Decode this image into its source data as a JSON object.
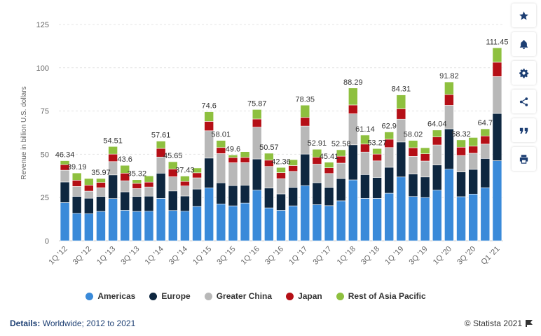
{
  "chart_data": {
    "type": "bar",
    "stacked": true,
    "ylabel": "Revenue in billion U.S. dollars",
    "ylim": [
      0,
      125
    ],
    "yticks": [
      0,
      25,
      50,
      75,
      100,
      125
    ],
    "grid": true,
    "categories": [
      "1Q '12",
      "2Q '12",
      "3Q '12",
      "4Q '12",
      "1Q '13",
      "2Q '13",
      "3Q '13",
      "4Q '13",
      "1Q '14",
      "2Q '14",
      "3Q '14",
      "4Q '14",
      "1Q '15",
      "2Q '15",
      "3Q '15",
      "4Q '15",
      "1Q '16",
      "2Q '16",
      "3Q '16",
      "4Q '16",
      "1Q '17",
      "2Q '17",
      "3Q '17",
      "4Q '17",
      "1Q '18",
      "2Q '18",
      "3Q '18",
      "4Q '18",
      "1Q '19",
      "2Q '19",
      "3Q '19",
      "4Q '19",
      "1Q '20",
      "2Q '20",
      "3Q '20",
      "4Q '20",
      "Q1 '21"
    ],
    "xtick_labels": [
      "1Q '12",
      "",
      "3Q '12",
      "",
      "1Q '13",
      "",
      "3Q '13",
      "",
      "1Q '14",
      "",
      "3Q '14",
      "",
      "1Q '15",
      "",
      "3Q '15",
      "",
      "1Q '16",
      "",
      "3Q '16",
      "",
      "1Q '17",
      "",
      "3Q '17",
      "",
      "1Q '18",
      "",
      "3Q '18",
      "",
      "1Q '19",
      "",
      "3Q '19",
      "",
      "1Q '20",
      "",
      "3Q '20",
      "",
      "Q1 '21"
    ],
    "totals": [
      46.34,
      39.19,
      35.97,
      36.0,
      54.51,
      43.6,
      35.32,
      37.5,
      57.61,
      45.65,
      37.43,
      42.1,
      74.6,
      58.01,
      49.6,
      51.5,
      75.87,
      50.57,
      42.36,
      46.9,
      78.35,
      52.91,
      45.41,
      52.58,
      88.29,
      61.14,
      53.27,
      62.9,
      84.31,
      58.02,
      53.8,
      64.04,
      91.82,
      58.32,
      59.7,
      64.7,
      111.45
    ],
    "total_labels": [
      "46.34",
      "39.19",
      "",
      "35.97",
      "54.51",
      "43.6",
      "35.32",
      "",
      "57.61",
      "45.65",
      "37.43",
      "",
      "74.6",
      "58.01",
      "49.6",
      "",
      "75.87",
      "50.57",
      "42.36",
      "",
      "78.35",
      "52.91",
      "45.41",
      "52.58",
      "88.29",
      "61.14",
      "53.27",
      "62.9",
      "84.31",
      "58.02",
      "",
      "64.04",
      "91.82",
      "58.32",
      "",
      "64.7",
      "111.45"
    ],
    "series": [
      {
        "name": "Americas",
        "color": "#3a8ad9",
        "values": [
          22.1,
          15.9,
          15.7,
          17.0,
          24.4,
          17.6,
          17.0,
          17.1,
          24.5,
          17.5,
          17.1,
          19.9,
          30.6,
          21.3,
          20.2,
          21.8,
          29.3,
          19.0,
          17.6,
          20.2,
          31.9,
          20.9,
          20.3,
          23.1,
          35.2,
          24.5,
          24.5,
          27.5,
          36.9,
          25.6,
          25.0,
          29.3,
          41.4,
          25.5,
          27.0,
          30.7,
          46.3
        ]
      },
      {
        "name": "Europe",
        "color": "#0e2740",
        "values": [
          11.9,
          9.8,
          8.9,
          8.6,
          13.7,
          10.7,
          8.6,
          8.7,
          14.6,
          11.3,
          8.8,
          10.0,
          17.2,
          12.2,
          11.7,
          10.3,
          18.0,
          11.5,
          9.5,
          10.7,
          18.2,
          12.7,
          10.6,
          12.9,
          20.3,
          13.8,
          12.1,
          15.0,
          20.2,
          13.0,
          11.9,
          14.5,
          23.3,
          14.3,
          14.3,
          16.9,
          27.3
        ]
      },
      {
        "name": "Greater China",
        "color": "#b8b8b8",
        "values": [
          6.8,
          5.7,
          4.1,
          5.1,
          7.7,
          6.4,
          4.6,
          5.3,
          9.3,
          8.2,
          5.8,
          6.5,
          15.8,
          16.9,
          13.2,
          13.1,
          18.4,
          12.5,
          8.8,
          9.2,
          16.2,
          10.7,
          8.0,
          8.9,
          17.9,
          13.0,
          9.6,
          11.4,
          13.2,
          10.2,
          9.2,
          11.6,
          13.6,
          9.5,
          9.3,
          8.3,
          21.3
        ]
      },
      {
        "name": "Japan",
        "color": "#b50f16",
        "values": [
          3.2,
          3.6,
          3.5,
          3.0,
          4.3,
          4.4,
          3.0,
          2.8,
          5.0,
          4.5,
          2.6,
          2.9,
          5.4,
          3.5,
          3.0,
          3.0,
          4.7,
          3.6,
          3.5,
          3.4,
          5.0,
          4.0,
          3.3,
          4.0,
          5.1,
          4.6,
          3.9,
          4.8,
          6.0,
          5.0,
          4.2,
          4.6,
          6.2,
          4.8,
          4.1,
          4.7,
          8.3
        ]
      },
      {
        "name": "Rest of Asia Pacific",
        "color": "#8ec03f",
        "values": [
          2.3,
          4.2,
          3.8,
          2.3,
          4.4,
          4.5,
          2.1,
          3.6,
          4.2,
          4.2,
          3.1,
          2.8,
          5.6,
          4.1,
          1.5,
          3.3,
          5.5,
          4.0,
          3.0,
          3.4,
          7.1,
          4.6,
          3.2,
          3.7,
          9.8,
          5.2,
          3.2,
          4.2,
          8.0,
          4.2,
          3.5,
          4.0,
          7.3,
          4.2,
          5.0,
          4.1,
          8.3
        ]
      }
    ]
  },
  "legend": {
    "items": [
      {
        "label": "Americas",
        "color": "#3a8ad9"
      },
      {
        "label": "Europe",
        "color": "#0e2740"
      },
      {
        "label": "Greater China",
        "color": "#b8b8b8"
      },
      {
        "label": "Japan",
        "color": "#b50f16"
      },
      {
        "label": "Rest of Asia Pacific",
        "color": "#8ec03f"
      }
    ]
  },
  "footer": {
    "details_label": "Details:",
    "details_value": "Worldwide; 2012 to 2021",
    "copyright": "© Statista 2021"
  },
  "toolbar": {
    "buttons": [
      {
        "icon": "star-icon"
      },
      {
        "icon": "bell-icon"
      },
      {
        "icon": "gear-icon"
      },
      {
        "icon": "share-icon"
      },
      {
        "icon": "quote-icon"
      },
      {
        "icon": "print-icon"
      }
    ]
  }
}
